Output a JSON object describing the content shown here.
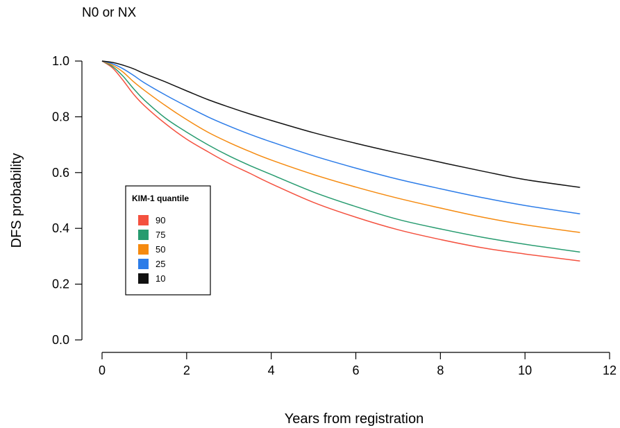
{
  "chart_data": {
    "type": "line",
    "title": "N0 or NX",
    "xlabel": "Years from registration",
    "ylabel": "DFS probability",
    "xlim": [
      0,
      12
    ],
    "ylim": [
      0,
      1
    ],
    "xticks": [
      0,
      2,
      4,
      6,
      8,
      10,
      12
    ],
    "yticks": [
      "0.0",
      "0.2",
      "0.4",
      "0.6",
      "0.8",
      "1.0"
    ],
    "grid": false,
    "legend": {
      "title": "KIM-1 quantile",
      "placement": "center-left"
    },
    "x": [
      0,
      0.25,
      0.5,
      0.75,
      1,
      1.5,
      2,
      2.5,
      3,
      3.5,
      4,
      5,
      6,
      7,
      8,
      9,
      10,
      11.3
    ],
    "series": [
      {
        "name": "90",
        "color": "#F4513F",
        "values": [
          1.0,
          0.975,
          0.93,
          0.88,
          0.84,
          0.775,
          0.72,
          0.675,
          0.633,
          0.597,
          0.56,
          0.493,
          0.44,
          0.395,
          0.36,
          0.33,
          0.308,
          0.283
        ]
      },
      {
        "name": "75",
        "color": "#279B6F",
        "values": [
          1.0,
          0.98,
          0.945,
          0.9,
          0.86,
          0.795,
          0.745,
          0.7,
          0.66,
          0.625,
          0.593,
          0.53,
          0.478,
          0.432,
          0.398,
          0.368,
          0.343,
          0.315
        ]
      },
      {
        "name": "50",
        "color": "#F58A0F",
        "values": [
          1.0,
          0.985,
          0.96,
          0.925,
          0.895,
          0.84,
          0.79,
          0.745,
          0.708,
          0.675,
          0.645,
          0.593,
          0.548,
          0.508,
          0.473,
          0.44,
          0.413,
          0.385
        ]
      },
      {
        "name": "25",
        "color": "#2C7CE8",
        "values": [
          1.0,
          0.99,
          0.972,
          0.948,
          0.922,
          0.878,
          0.838,
          0.8,
          0.767,
          0.737,
          0.71,
          0.66,
          0.616,
          0.576,
          0.542,
          0.51,
          0.482,
          0.452
        ]
      },
      {
        "name": "10",
        "color": "#111111",
        "values": [
          1.0,
          0.995,
          0.985,
          0.972,
          0.955,
          0.925,
          0.893,
          0.862,
          0.835,
          0.81,
          0.787,
          0.743,
          0.705,
          0.67,
          0.637,
          0.605,
          0.575,
          0.547
        ]
      }
    ]
  }
}
